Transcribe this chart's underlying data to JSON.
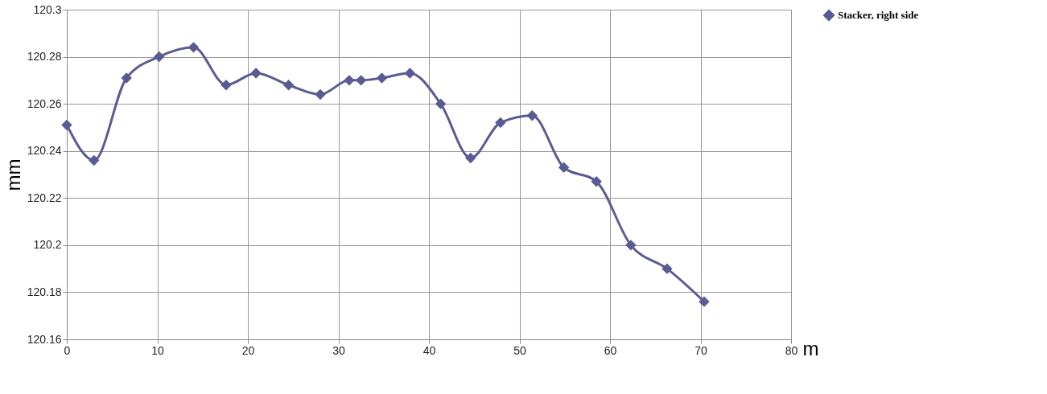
{
  "chart_data": {
    "type": "line",
    "xlabel": "m",
    "ylabel": "mm",
    "x": [
      0,
      3.0,
      6.6,
      10.2,
      14.0,
      17.6,
      20.9,
      24.5,
      28.0,
      31.2,
      32.5,
      34.8,
      37.9,
      41.3,
      44.6,
      47.9,
      51.4,
      54.9,
      58.5,
      62.3,
      66.3,
      70.4
    ],
    "series": [
      {
        "name": "Stacker, right side",
        "color": "#5b5b94",
        "values": [
          120.251,
          120.236,
          120.271,
          120.28,
          120.284,
          120.268,
          120.273,
          120.268,
          120.264,
          120.27,
          120.27,
          120.271,
          120.273,
          120.26,
          120.237,
          120.252,
          120.255,
          120.233,
          120.227,
          120.2,
          120.19,
          120.176
        ]
      }
    ],
    "xlim": [
      0,
      80
    ],
    "xticks": [
      0,
      10,
      20,
      30,
      40,
      50,
      60,
      70,
      80
    ],
    "ylim": [
      120.16,
      120.3
    ],
    "yticks": [
      120.16,
      120.18,
      120.2,
      120.22,
      120.24,
      120.26,
      120.28,
      120.3
    ],
    "grid": true,
    "legend": "right",
    "marker": "diamond",
    "line_style": "solid"
  }
}
